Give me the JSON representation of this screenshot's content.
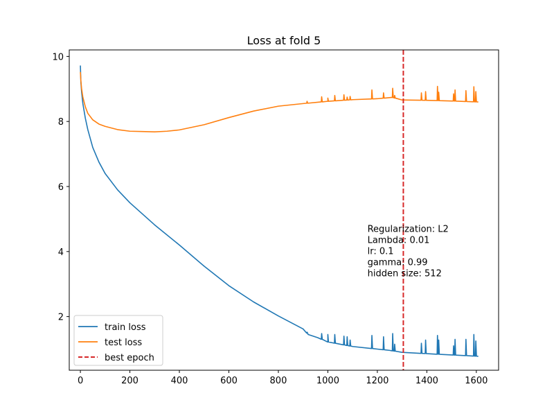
{
  "chart_data": {
    "type": "line",
    "title": "Loss at fold 5",
    "xlabel": "",
    "ylabel": "",
    "xlim": [
      -45,
      1690
    ],
    "ylim": [
      0.35,
      10.2
    ],
    "xticks": [
      0,
      200,
      400,
      600,
      800,
      1000,
      1200,
      1400,
      1600
    ],
    "yticks": [
      2,
      4,
      6,
      8,
      10
    ],
    "grid": false,
    "legend_placement": "lower-left",
    "series": [
      {
        "name": "train loss",
        "color": "#1f77b4",
        "points": [
          [
            0,
            9.72
          ],
          [
            2,
            9.2
          ],
          [
            5,
            8.9
          ],
          [
            10,
            8.55
          ],
          [
            20,
            8.1
          ],
          [
            30,
            7.75
          ],
          [
            50,
            7.2
          ],
          [
            75,
            6.75
          ],
          [
            100,
            6.4
          ],
          [
            150,
            5.9
          ],
          [
            200,
            5.5
          ],
          [
            300,
            4.82
          ],
          [
            400,
            4.2
          ],
          [
            500,
            3.55
          ],
          [
            600,
            2.95
          ],
          [
            700,
            2.45
          ],
          [
            800,
            2.02
          ],
          [
            900,
            1.62
          ],
          [
            915,
            1.5
          ],
          [
            920,
            1.45
          ],
          [
            960,
            1.35
          ],
          [
            1000,
            1.22
          ],
          [
            1100,
            1.08
          ],
          [
            1200,
            1.0
          ],
          [
            1250,
            0.96
          ],
          [
            1300,
            0.9
          ],
          [
            1400,
            0.86
          ],
          [
            1500,
            0.82
          ],
          [
            1608,
            0.78
          ]
        ],
        "spikes": [
          [
            916,
            1.52
          ],
          [
            975,
            1.48
          ],
          [
            1000,
            1.45
          ],
          [
            1028,
            1.45
          ],
          [
            1065,
            1.4
          ],
          [
            1078,
            1.38
          ],
          [
            1090,
            1.28
          ],
          [
            1178,
            1.42
          ],
          [
            1225,
            1.38
          ],
          [
            1262,
            1.48
          ],
          [
            1270,
            1.15
          ],
          [
            1378,
            1.18
          ],
          [
            1395,
            1.28
          ],
          [
            1443,
            1.42
          ],
          [
            1448,
            1.28
          ],
          [
            1508,
            1.1
          ],
          [
            1514,
            1.3
          ],
          [
            1558,
            1.3
          ],
          [
            1590,
            1.45
          ],
          [
            1598,
            1.25
          ]
        ]
      },
      {
        "name": "test loss",
        "color": "#ff7f0e",
        "points": [
          [
            0,
            9.52
          ],
          [
            2,
            9.25
          ],
          [
            5,
            9.0
          ],
          [
            10,
            8.75
          ],
          [
            20,
            8.45
          ],
          [
            30,
            8.25
          ],
          [
            50,
            8.05
          ],
          [
            75,
            7.92
          ],
          [
            100,
            7.85
          ],
          [
            150,
            7.75
          ],
          [
            200,
            7.7
          ],
          [
            250,
            7.69
          ],
          [
            300,
            7.68
          ],
          [
            350,
            7.7
          ],
          [
            400,
            7.74
          ],
          [
            500,
            7.9
          ],
          [
            600,
            8.12
          ],
          [
            700,
            8.32
          ],
          [
            800,
            8.47
          ],
          [
            900,
            8.55
          ],
          [
            1000,
            8.62
          ],
          [
            1100,
            8.67
          ],
          [
            1200,
            8.7
          ],
          [
            1260,
            8.74
          ],
          [
            1300,
            8.66
          ],
          [
            1400,
            8.65
          ],
          [
            1500,
            8.63
          ],
          [
            1608,
            8.6
          ]
        ],
        "spikes": [
          [
            916,
            8.62
          ],
          [
            975,
            8.76
          ],
          [
            1000,
            8.72
          ],
          [
            1028,
            8.8
          ],
          [
            1065,
            8.82
          ],
          [
            1078,
            8.75
          ],
          [
            1090,
            8.77
          ],
          [
            1178,
            8.97
          ],
          [
            1225,
            8.88
          ],
          [
            1262,
            9.02
          ],
          [
            1270,
            8.8
          ],
          [
            1378,
            8.88
          ],
          [
            1395,
            8.92
          ],
          [
            1443,
            9.08
          ],
          [
            1448,
            8.9
          ],
          [
            1508,
            8.85
          ],
          [
            1514,
            8.97
          ],
          [
            1558,
            8.95
          ],
          [
            1590,
            9.07
          ],
          [
            1598,
            8.92
          ]
        ]
      },
      {
        "name": "best epoch",
        "color": "#d62728",
        "style": "dashed",
        "x_value": 1305
      }
    ],
    "annotation": {
      "lines": [
        "Regularization: L2",
        "Lambda: 0.01",
        "lr: 0.1",
        "gamma: 0.99",
        "hidden size: 512"
      ],
      "x": 1160,
      "y": 4.6
    }
  }
}
